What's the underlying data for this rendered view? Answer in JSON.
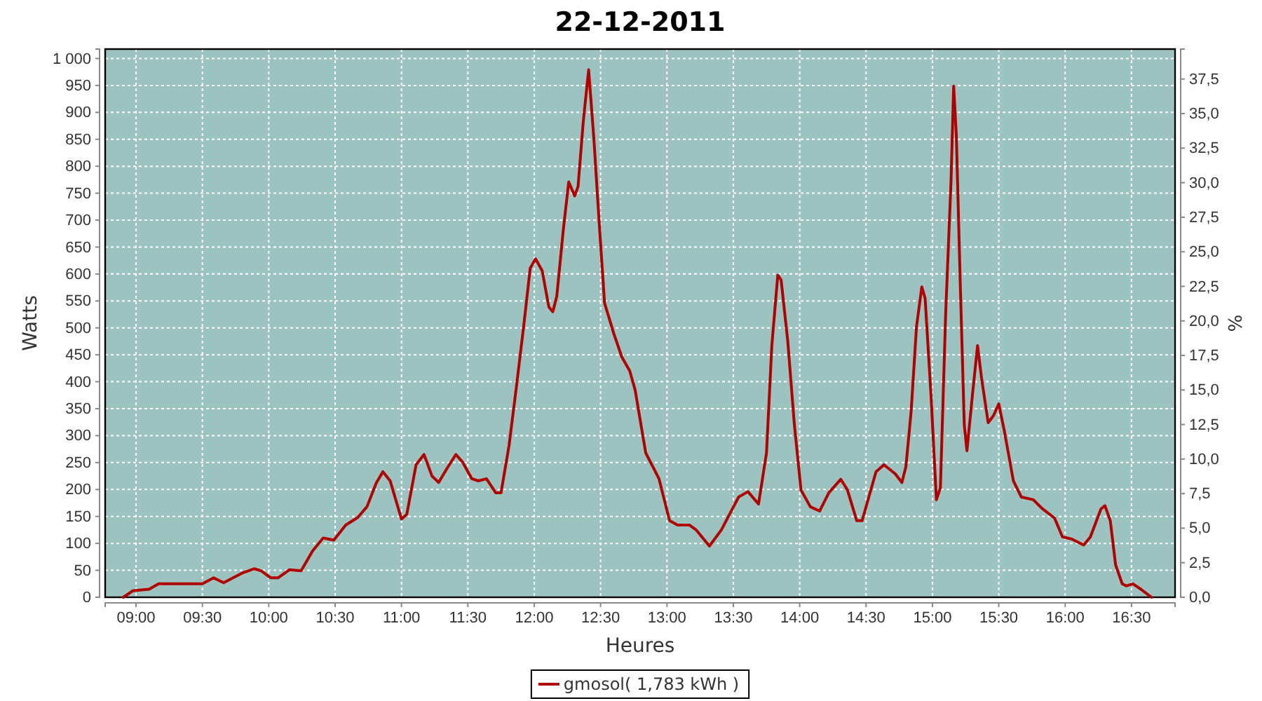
{
  "chart_data": {
    "type": "line",
    "title": "22-12-2011",
    "xlabel": "Heures",
    "ylabel": "Watts",
    "y2label": "%",
    "xlim": [
      8.7675,
      16.828
    ],
    "ylim": [
      0,
      1017.5
    ],
    "y2lim": [
      0,
      39.67
    ],
    "xticks": [
      {
        "value": 9,
        "label": "09:00"
      },
      {
        "value": 9.5,
        "label": "09:30"
      },
      {
        "value": 10,
        "label": "10:00"
      },
      {
        "value": 10.5,
        "label": "10:30"
      },
      {
        "value": 11,
        "label": "11:00"
      },
      {
        "value": 11.5,
        "label": "11:30"
      },
      {
        "value": 12,
        "label": "12:00"
      },
      {
        "value": 12.5,
        "label": "12:30"
      },
      {
        "value": 13,
        "label": "13:00"
      },
      {
        "value": 13.5,
        "label": "13:30"
      },
      {
        "value": 14,
        "label": "14:00"
      },
      {
        "value": 14.5,
        "label": "14:30"
      },
      {
        "value": 15,
        "label": "15:00"
      },
      {
        "value": 15.5,
        "label": "15:30"
      },
      {
        "value": 16,
        "label": "16:00"
      },
      {
        "value": 16.5,
        "label": "16:30"
      }
    ],
    "yticks": [
      0,
      50,
      100,
      150,
      200,
      250,
      300,
      350,
      400,
      450,
      500,
      550,
      600,
      650,
      700,
      750,
      800,
      850,
      900,
      950,
      {
        "value": 1000,
        "label": "1 000"
      }
    ],
    "y2ticks": [
      {
        "value": 0,
        "label": "0,0"
      },
      {
        "value": 2.5,
        "label": "2,5"
      },
      {
        "value": 5,
        "label": "5,0"
      },
      {
        "value": 7.5,
        "label": "7,5"
      },
      {
        "value": 10,
        "label": "10,0"
      },
      {
        "value": 12.5,
        "label": "12,5"
      },
      {
        "value": 15,
        "label": "15,0"
      },
      {
        "value": 17.5,
        "label": "17,5"
      },
      {
        "value": 20,
        "label": "20,0"
      },
      {
        "value": 22.5,
        "label": "22,5"
      },
      {
        "value": 25,
        "label": "25,0"
      },
      {
        "value": 27.5,
        "label": "27,5"
      },
      {
        "value": 30,
        "label": "30,0"
      },
      {
        "value": 32.5,
        "label": "32,5"
      },
      {
        "value": 35,
        "label": "35,0"
      },
      {
        "value": 37.5,
        "label": "37,5"
      }
    ],
    "grid": true,
    "legend": "bottom",
    "marker": "none",
    "line_style": "solid",
    "series": [
      {
        "name": "gmosol( 1,783 kWh )",
        "color": "#b00000",
        "x": [
          8.905,
          8.975,
          9.099,
          9.17,
          9.31,
          9.5,
          9.585,
          9.66,
          9.8,
          9.89,
          9.944,
          10.015,
          10.07,
          10.155,
          10.244,
          10.33,
          10.41,
          10.49,
          10.58,
          10.67,
          10.74,
          10.81,
          10.86,
          10.915,
          11.0,
          11.04,
          11.11,
          11.17,
          11.23,
          11.28,
          11.35,
          11.41,
          11.46,
          11.53,
          11.58,
          11.64,
          11.71,
          11.75,
          11.81,
          11.865,
          11.92,
          11.97,
          12.01,
          12.06,
          12.11,
          12.14,
          12.17,
          12.22,
          12.26,
          12.305,
          12.33,
          12.37,
          12.41,
          12.45,
          12.49,
          12.53,
          12.6,
          12.66,
          12.72,
          12.76,
          12.84,
          12.94,
          13.02,
          13.08,
          13.17,
          13.22,
          13.32,
          13.41,
          13.54,
          13.61,
          13.69,
          13.75,
          13.79,
          13.835,
          13.86,
          13.91,
          13.96,
          14.01,
          14.08,
          14.15,
          14.22,
          14.31,
          14.36,
          14.43,
          14.47,
          14.575,
          14.635,
          14.72,
          14.77,
          14.8,
          14.84,
          14.88,
          14.92,
          14.945,
          14.99,
          15.03,
          15.06,
          15.1,
          15.14,
          15.16,
          15.18,
          15.21,
          15.24,
          15.26,
          15.3,
          15.34,
          15.37,
          15.42,
          15.46,
          15.5,
          15.54,
          15.61,
          15.67,
          15.76,
          15.83,
          15.92,
          15.98,
          16.05,
          16.14,
          16.19,
          16.27,
          16.3,
          16.34,
          16.38,
          16.43,
          16.46,
          16.51,
          16.57,
          16.65
        ],
        "values": [
          0,
          12,
          15,
          25,
          25,
          25,
          36,
          27,
          45,
          53,
          49,
          36,
          36,
          51,
          49,
          86,
          110,
          106,
          134,
          148,
          168,
          212,
          233,
          216,
          145,
          154,
          246,
          265,
          225,
          213,
          242,
          265,
          251,
          220,
          216,
          220,
          194,
          194,
          281,
          389,
          502,
          611,
          628,
          606,
          539,
          530,
          559,
          684,
          771,
          745,
          762,
          884,
          979,
          849,
          693,
          546,
          489,
          446,
          420,
          385,
          268,
          220,
          142,
          134,
          134,
          125,
          95,
          125,
          186,
          196,
          173,
          268,
          467,
          598,
          589,
          476,
          320,
          199,
          168,
          160,
          194,
          219,
          199,
          142,
          142,
          233,
          246,
          229,
          213,
          242,
          346,
          502,
          576,
          555,
          372,
          181,
          203,
          528,
          771,
          949,
          858,
          580,
          320,
          272,
          372,
          467,
          407,
          324,
          337,
          359,
          311,
          216,
          186,
          181,
          164,
          147,
          112,
          108,
          97,
          112,
          164,
          170,
          142,
          60,
          25,
          21,
          25,
          15,
          0
        ]
      }
    ]
  }
}
